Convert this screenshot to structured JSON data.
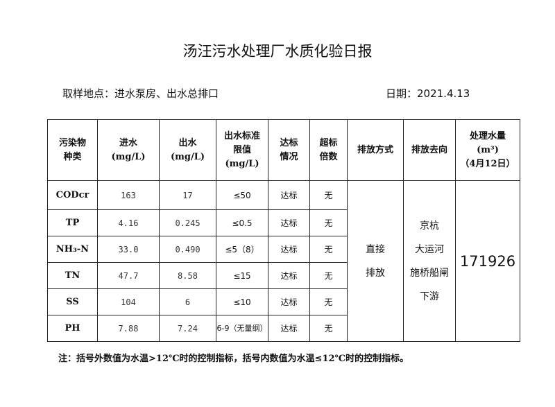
{
  "title": "汤汪污水处理厂水质化验日报",
  "location": "取样地点：进水泵房、出水总排口",
  "date": "日期：2021.4.13",
  "headers": [
    "污染物种类",
    "进水(mg/L)",
    "出水(mg/L)",
    "出水标准限值(mg/L)",
    "达标情况",
    "超标倍数",
    "排放方式",
    "排放去向",
    "处理水量(m³)（4月12日）"
  ],
  "header_lines": {
    "pollutant": [
      "污染物",
      "种类"
    ],
    "influent": [
      "进水",
      "(mg/L)"
    ],
    "effluent": [
      "出水",
      "(mg/L)"
    ],
    "limit": [
      "出水标准",
      "限值",
      "(mg/L)"
    ],
    "compliance": [
      "达标",
      "情况"
    ],
    "exceed": [
      "超标",
      "倍数"
    ],
    "discharge_method": "排放方式",
    "discharge_dest": "排放去向",
    "volume": [
      "处理水量",
      "(m³)",
      "（4月12日）"
    ]
  },
  "rows": [
    {
      "pollutant": "CODcr",
      "influent": "163",
      "effluent": "17",
      "limit": "≤50",
      "compliance": "达标",
      "exceed": "无"
    },
    {
      "pollutant": "TP",
      "influent": "4.16",
      "effluent": "0.245",
      "limit": "≤0.5",
      "compliance": "达标",
      "exceed": "无"
    },
    {
      "pollutant": "NH₃-N",
      "influent": "33.0",
      "effluent": "0.490",
      "limit": "≤5（8）",
      "compliance": "达标",
      "exceed": "无"
    },
    {
      "pollutant": "TN",
      "influent": "47.7",
      "effluent": "8.58",
      "limit": "≤15",
      "compliance": "达标",
      "exceed": "无"
    },
    {
      "pollutant": "SS",
      "influent": "104",
      "effluent": "6",
      "limit": "≤10",
      "compliance": "达标",
      "exceed": "无"
    },
    {
      "pollutant": "PH",
      "influent": "7.88",
      "effluent": "7.24",
      "limit": "6-9（无量纲）",
      "compliance": "达标",
      "exceed": "无"
    }
  ],
  "discharge_method": [
    "直接",
    "排放"
  ],
  "discharge_dest": [
    "京杭",
    "大运河",
    "施桥船闸",
    "下游"
  ],
  "volume": "171926",
  "note": "注：括号外数值为水温>12℃时的控制指标，括号内数值为水温≤12℃时的控制指标。"
}
